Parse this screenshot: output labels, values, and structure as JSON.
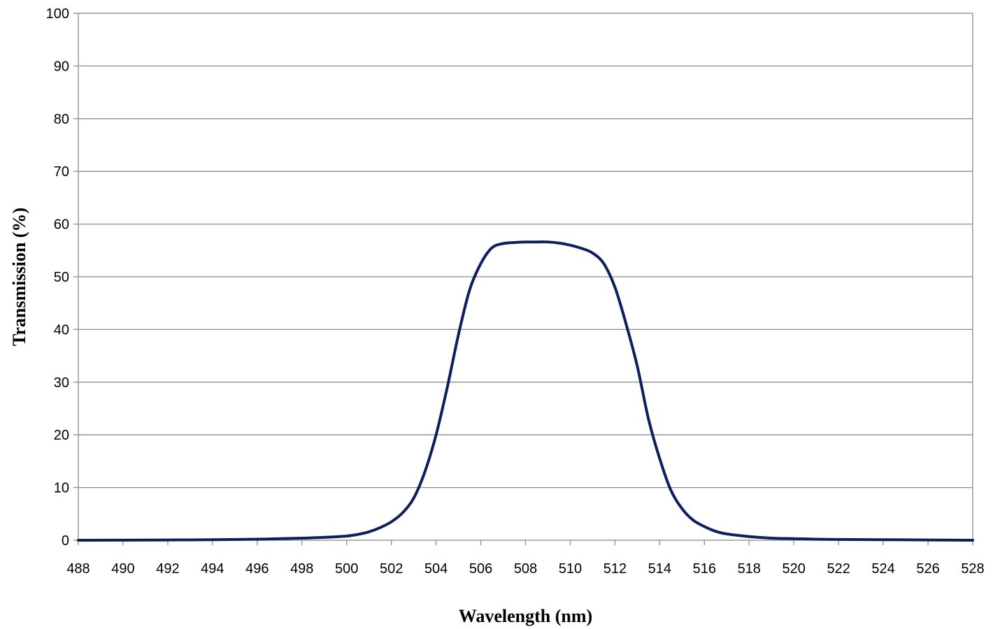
{
  "chart_data": {
    "type": "line",
    "title": "",
    "xlabel": "Wavelength (nm)",
    "ylabel": "Transmission (%)",
    "xlim": [
      488,
      528
    ],
    "ylim": [
      0,
      100
    ],
    "x_ticks": [
      "488",
      "490",
      "492",
      "494",
      "496",
      "498",
      "500",
      "502",
      "504",
      "506",
      "508",
      "510",
      "512",
      "514",
      "516",
      "518",
      "520",
      "522",
      "524",
      "526",
      "528"
    ],
    "y_ticks": [
      "0",
      "10",
      "20",
      "30",
      "40",
      "50",
      "60",
      "70",
      "80",
      "90",
      "100"
    ],
    "grid": true,
    "legend": "none",
    "colors": {
      "series": "#0d1f5c",
      "grid": "#8c8c8c"
    },
    "series": [
      {
        "x": [
          488,
          490,
          492,
          494,
          496,
          497,
          498,
          499,
          500,
          500.5,
          501,
          501.5,
          502,
          502.5,
          503,
          503.5,
          504,
          504.5,
          505,
          505.5,
          506,
          506.5,
          507,
          507.5,
          508,
          508.5,
          509,
          509.5,
          510,
          510.5,
          511,
          511.5,
          512,
          512.5,
          513,
          513.5,
          514,
          514.5,
          515,
          515.5,
          516,
          516.5,
          517,
          518,
          519,
          520,
          521,
          522,
          524,
          526,
          528
        ],
        "y": [
          0,
          0.02,
          0.05,
          0.1,
          0.2,
          0.3,
          0.4,
          0.55,
          0.8,
          1.1,
          1.6,
          2.4,
          3.5,
          5.2,
          8,
          13,
          20,
          29,
          39,
          47.5,
          52.5,
          55.5,
          56.3,
          56.5,
          56.6,
          56.6,
          56.6,
          56.4,
          56,
          55.4,
          54.5,
          52.5,
          48,
          41,
          33,
          23,
          15.5,
          9.5,
          6,
          3.8,
          2.6,
          1.7,
          1.2,
          0.7,
          0.4,
          0.3,
          0.2,
          0.15,
          0.1,
          0.05,
          0
        ]
      }
    ]
  }
}
